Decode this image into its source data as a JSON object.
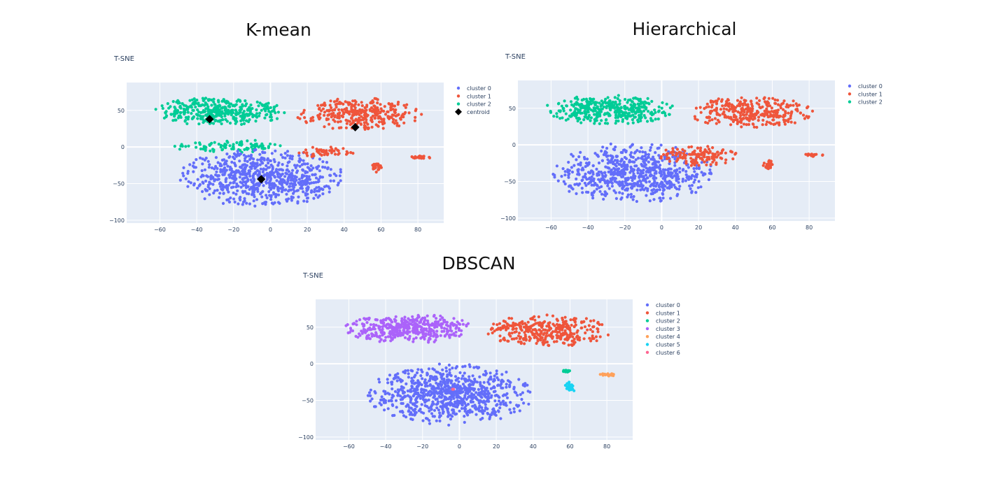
{
  "titles": {
    "kmean": "K-mean",
    "hier": "Hierarchical",
    "dbscan": "DBSCAN"
  },
  "colors": {
    "cluster 0": "#636efa",
    "cluster 1": "#ef553b",
    "cluster 2": "#00cc96",
    "cluster 3": "#ab63fa",
    "cluster 4": "#ffa15a",
    "cluster 5": "#19d3f3",
    "cluster 6": "#ff6692",
    "centroid": "#000000",
    "plot_bg": "#e5ecf6"
  },
  "chart_data": [
    {
      "id": "kmean",
      "type": "scatter",
      "title": "T-SNE",
      "xlim": [
        -78,
        94
      ],
      "ylim": [
        -104,
        88
      ],
      "xticks": [
        -60,
        -40,
        -20,
        0,
        20,
        40,
        60,
        80
      ],
      "yticks": [
        -100,
        -50,
        0,
        50
      ],
      "grid": true,
      "legend_position": "right",
      "legend": [
        "cluster 0",
        "cluster 1",
        "cluster 2",
        "centroid"
      ],
      "regions": [
        {
          "series": "cluster 2",
          "cx": -28,
          "cy": 48,
          "rx": 36,
          "ry": 20,
          "n": 380
        },
        {
          "series": "cluster 2",
          "cx": -20,
          "cy": 1,
          "rx": 34,
          "ry": 9,
          "n": 90
        },
        {
          "series": "cluster 0",
          "cx": -5,
          "cy": -42,
          "rx": 45,
          "ry": 40,
          "n": 700
        },
        {
          "series": "cluster 1",
          "cx": 48,
          "cy": 45,
          "rx": 34,
          "ry": 22,
          "n": 320
        },
        {
          "series": "cluster 1",
          "cx": 30,
          "cy": -7,
          "rx": 16,
          "ry": 8,
          "n": 50
        },
        {
          "series": "cluster 1",
          "cx": 58,
          "cy": -28,
          "rx": 3,
          "ry": 7,
          "n": 25
        },
        {
          "series": "cluster 1",
          "cx": 82,
          "cy": -14,
          "rx": 6,
          "ry": 2,
          "n": 20
        }
      ],
      "centroids": [
        {
          "x": -33,
          "y": 38
        },
        {
          "x": 46,
          "y": 27
        },
        {
          "x": -5,
          "y": -44
        }
      ]
    },
    {
      "id": "hier",
      "type": "scatter",
      "title": "T-SNE",
      "xlim": [
        -78,
        94
      ],
      "ylim": [
        -104,
        88
      ],
      "xticks": [
        -60,
        -40,
        -20,
        0,
        20,
        40,
        60,
        80
      ],
      "yticks": [
        -100,
        -50,
        0,
        50
      ],
      "grid": true,
      "legend_position": "right",
      "legend": [
        "cluster 0",
        "cluster 1",
        "cluster 2"
      ],
      "regions": [
        {
          "series": "cluster 2",
          "cx": -28,
          "cy": 48,
          "rx": 36,
          "ry": 20,
          "n": 380
        },
        {
          "series": "cluster 0",
          "cx": -15,
          "cy": -38,
          "rx": 45,
          "ry": 42,
          "n": 700
        },
        {
          "series": "cluster 1",
          "cx": 48,
          "cy": 45,
          "rx": 34,
          "ry": 22,
          "n": 320
        },
        {
          "series": "cluster 1",
          "cx": 20,
          "cy": -15,
          "rx": 22,
          "ry": 14,
          "n": 140
        },
        {
          "series": "cluster 1",
          "cx": 58,
          "cy": -28,
          "rx": 3,
          "ry": 7,
          "n": 25
        },
        {
          "series": "cluster 1",
          "cx": 82,
          "cy": -14,
          "rx": 6,
          "ry": 2,
          "n": 20
        }
      ],
      "centroids": []
    },
    {
      "id": "dbscan",
      "type": "scatter",
      "title": "T-SNE",
      "xlim": [
        -78,
        94
      ],
      "ylim": [
        -104,
        88
      ],
      "xticks": [
        -60,
        -40,
        -20,
        0,
        20,
        40,
        60,
        80
      ],
      "yticks": [
        -100,
        -50,
        0,
        50
      ],
      "grid": true,
      "legend_position": "right",
      "legend": [
        "cluster 0",
        "cluster 1",
        "cluster 2",
        "cluster 3",
        "cluster 4",
        "cluster 5",
        "cluster 6"
      ],
      "regions": [
        {
          "series": "cluster 3",
          "cx": -28,
          "cy": 48,
          "rx": 36,
          "ry": 20,
          "n": 420
        },
        {
          "series": "cluster 0",
          "cx": -5,
          "cy": -42,
          "rx": 45,
          "ry": 42,
          "n": 800
        },
        {
          "series": "cluster 1",
          "cx": 48,
          "cy": 45,
          "rx": 34,
          "ry": 22,
          "n": 340
        },
        {
          "series": "cluster 2",
          "cx": 58,
          "cy": -10,
          "rx": 2,
          "ry": 2,
          "n": 15
        },
        {
          "series": "cluster 4",
          "cx": 81,
          "cy": -15,
          "rx": 5,
          "ry": 2,
          "n": 25
        },
        {
          "series": "cluster 5",
          "cx": 60,
          "cy": -32,
          "rx": 3,
          "ry": 8,
          "n": 30
        },
        {
          "series": "cluster 6",
          "cx": -4,
          "cy": -35,
          "rx": 1,
          "ry": 1,
          "n": 2
        }
      ],
      "centroids": []
    }
  ]
}
